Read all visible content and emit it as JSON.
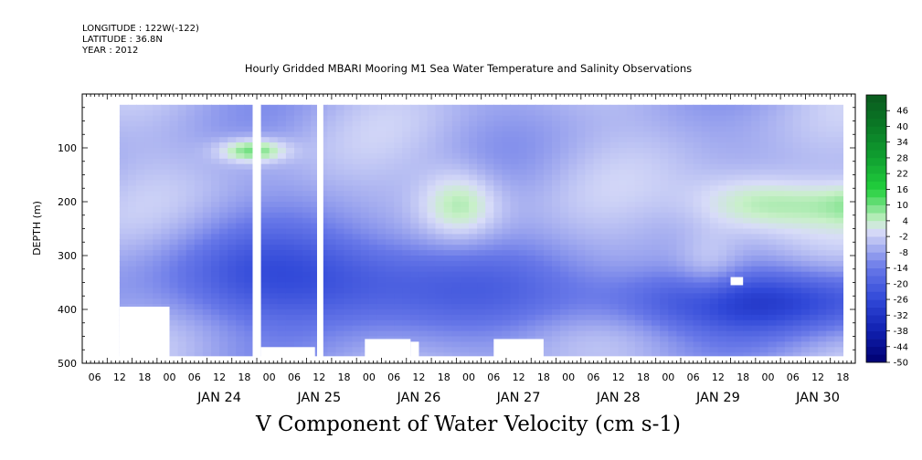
{
  "header": {
    "longitude": "LONGITUDE : 122W(-122)",
    "latitude": "LATITUDE : 36.8N",
    "year": "YEAR : 2012"
  },
  "title": "Hourly Gridded MBARI Mooring M1 Sea Water Temperature and Salinity Observations",
  "bottom_title": "V Component of Water Velocity (cm s-1)",
  "chart_data": {
    "type": "heatmap",
    "title": "Hourly Gridded MBARI Mooring M1 Sea Water Temperature and Salinity Observations",
    "xlabel": "",
    "ylabel": "DEPTH (m)",
    "colorbar_label": "V Component of Water Velocity (cm s-1)",
    "x_range": [
      "2012-01-23T03:00",
      "2012-01-30T21:00"
    ],
    "y_range": [
      500,
      0
    ],
    "y_ticks": [
      "100",
      "200",
      "300",
      "400",
      "500"
    ],
    "x_hour_ticks": [
      "06",
      "12",
      "18",
      "00",
      "06",
      "12",
      "18",
      "00",
      "06",
      "12",
      "18",
      "00",
      "06",
      "12",
      "18",
      "00",
      "06",
      "12",
      "18",
      "00",
      "06",
      "12",
      "18",
      "00",
      "06",
      "12",
      "18",
      "00",
      "06",
      "12",
      "18"
    ],
    "x_day_labels": [
      "JAN 24",
      "JAN 25",
      "JAN 26",
      "JAN 27",
      "JAN 28",
      "JAN 29",
      "JAN 30"
    ],
    "colorbar_levels": [
      "46",
      "40",
      "34",
      "28",
      "22",
      "16",
      "10",
      "4",
      "-2",
      "-8",
      "-14",
      "-20",
      "-26",
      "-32",
      "-38",
      "-44",
      "-50"
    ],
    "colorbar_range": [
      -50,
      52
    ],
    "data_depth_range": [
      20,
      485
    ],
    "data_time_start": "2012-01-23T12:00",
    "data_time_end": "2012-01-30T18:00",
    "colors": {
      "strong_positive": "#0a5a1e",
      "positive": "#22d03c",
      "weak_positive": "#c8f0c8",
      "near_zero": "#e8e8f8",
      "weak_negative": "#a8b0f0",
      "negative": "#4060e0",
      "strong_negative": "#000070"
    }
  }
}
